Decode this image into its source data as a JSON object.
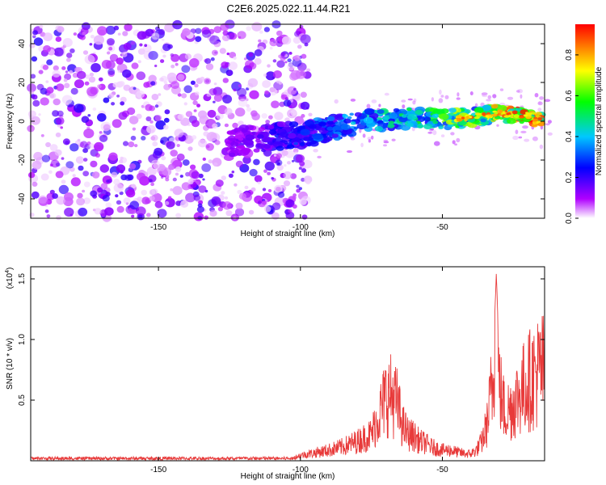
{
  "title": "C2E6.2025.022.11.44.R21",
  "chart_data": [
    {
      "type": "heatmap",
      "xlabel": "Height of straight line (km)",
      "ylabel": "Frequency (Hz)",
      "xlim": [
        -195,
        -14
      ],
      "ylim": [
        -50,
        50
      ],
      "xticks": [
        -150,
        -100,
        -50
      ],
      "yticks": [
        -40,
        -20,
        0,
        20,
        40
      ],
      "ridge": {
        "x": [
          -125,
          -120,
          -110,
          -100,
          -90,
          -80,
          -70,
          -60,
          -50,
          -40,
          -30,
          -20,
          -16
        ],
        "y": [
          -12,
          -10,
          -8,
          -7,
          -4,
          -1,
          1,
          2,
          1,
          2,
          4,
          3,
          0
        ]
      },
      "colorbar": {
        "label": "Normalized spectral amplitude",
        "ticks": [
          0.0,
          0.2,
          0.4,
          0.6,
          0.8
        ],
        "range": [
          0.0,
          0.95
        ],
        "colors": [
          "#ffffff",
          "#b000ff",
          "#0000ff",
          "#00c8ff",
          "#00ff00",
          "#ffff00",
          "#ff8000",
          "#ff0000"
        ]
      }
    },
    {
      "type": "line",
      "xlabel": "Height of straight line (km)",
      "ylabel": "SNR (10 * v/v)",
      "multiplier": "(x10",
      "multiplier_exp": "4",
      "xlim": [
        -195,
        -14
      ],
      "ylim": [
        0,
        1.6
      ],
      "xticks": [
        -150,
        -100,
        -50
      ],
      "yticks": [
        0.5,
        1.0,
        1.5
      ],
      "ytick_labels": [
        "0.5",
        "1.0",
        "1.5"
      ],
      "color": "#e83a3a",
      "series": [
        {
          "x": [
            -195,
            -150,
            -110,
            -103,
            -100,
            -95,
            -90,
            -85,
            -80,
            -75,
            -72,
            -70,
            -68,
            -66,
            -64,
            -62,
            -60,
            -58,
            -56,
            -54,
            -50,
            -47,
            -45,
            -42,
            -40,
            -38,
            -36,
            -34,
            -33,
            -32,
            -31,
            -30,
            -28,
            -26,
            -24,
            -22,
            -20,
            -18,
            -16,
            -14
          ],
          "y": [
            0.02,
            0.02,
            0.02,
            0.03,
            0.06,
            0.09,
            0.12,
            0.16,
            0.22,
            0.3,
            0.55,
            0.72,
            0.75,
            0.65,
            0.4,
            0.3,
            0.28,
            0.22,
            0.2,
            0.16,
            0.12,
            0.12,
            0.1,
            0.08,
            0.08,
            0.12,
            0.22,
            0.45,
            0.75,
            0.9,
            1.55,
            0.85,
            0.55,
            0.6,
            0.7,
            0.8,
            0.9,
            0.95,
            1.02,
            1.05
          ]
        }
      ]
    }
  ]
}
